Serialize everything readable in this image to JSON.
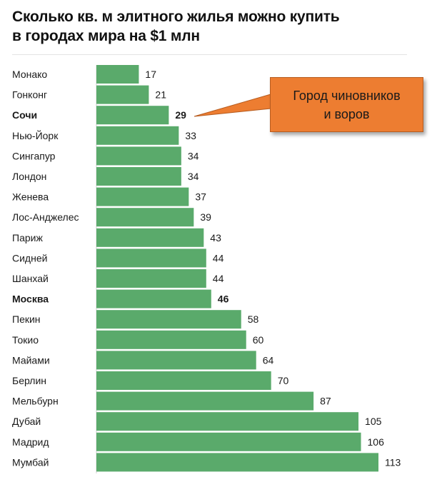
{
  "title": "Сколько кв. м элитного жилья можно купить\nв городах мира на $1 млн",
  "colors": {
    "bar": "#5aaa6b",
    "callout": "#ed7d31"
  },
  "callout": {
    "text": "Город чиновников\nи воров",
    "target": "Сочи"
  },
  "chart_data": {
    "type": "bar",
    "orientation": "horizontal",
    "title": "Сколько кв. м элитного жилья можно купить в городах мира на $1 млн",
    "categories": [
      "Монако",
      "Гонконг",
      "Сочи",
      "Нью-Йорк",
      "Сингапур",
      "Лондон",
      "Женева",
      "Лос-Анджелес",
      "Париж",
      "Сидней",
      "Шанхай",
      "Москва",
      "Пекин",
      "Токио",
      "Майами",
      "Берлин",
      "Мельбурн",
      "Дубай",
      "Мадрид",
      "Мумбай"
    ],
    "values": [
      17,
      21,
      29,
      33,
      34,
      34,
      37,
      39,
      43,
      44,
      44,
      46,
      58,
      60,
      64,
      70,
      87,
      105,
      106,
      113
    ],
    "highlighted": [
      "Сочи",
      "Москва"
    ],
    "xlim": [
      0,
      113
    ],
    "grid": false,
    "legend": "none"
  }
}
